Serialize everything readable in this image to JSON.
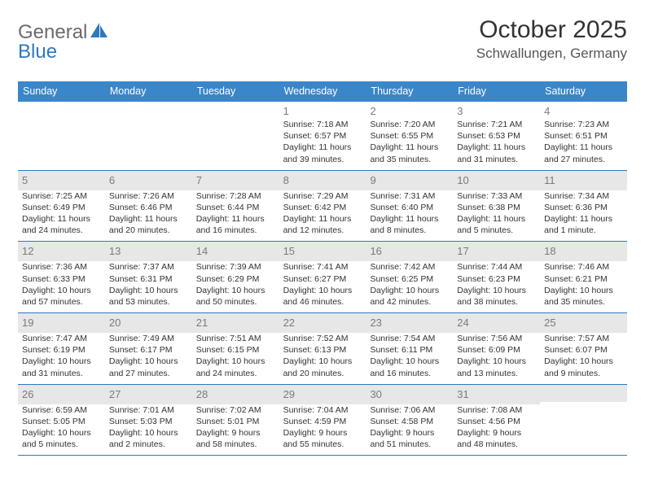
{
  "brand": {
    "word1": "General",
    "word2": "Blue",
    "word1_color": "#6b6b6b",
    "word2_color": "#2f78bf",
    "icon_color": "#2f78bf"
  },
  "title": "October 2025",
  "location": "Schwallungen, Germany",
  "colors": {
    "header_bg": "#3b86c8",
    "header_text": "#ffffff",
    "row_border": "#2f78bf",
    "daynum_color": "#7a7a7a",
    "daynum_bar_bg": "#e7e7e7",
    "text_color": "#333333",
    "page_bg": "#ffffff"
  },
  "fonts": {
    "title_size": 30,
    "location_size": 17,
    "day_header_size": 12.5,
    "daynum_size": 13,
    "info_size": 10.5
  },
  "day_names": [
    "Sunday",
    "Monday",
    "Tuesday",
    "Wednesday",
    "Thursday",
    "Friday",
    "Saturday"
  ],
  "weeks": [
    [
      {
        "blank": true
      },
      {
        "blank": true
      },
      {
        "blank": true
      },
      {
        "day": "1",
        "sunrise": "Sunrise: 7:18 AM",
        "sunset": "Sunset: 6:57 PM",
        "daylight": "Daylight: 11 hours and 39 minutes."
      },
      {
        "day": "2",
        "sunrise": "Sunrise: 7:20 AM",
        "sunset": "Sunset: 6:55 PM",
        "daylight": "Daylight: 11 hours and 35 minutes."
      },
      {
        "day": "3",
        "sunrise": "Sunrise: 7:21 AM",
        "sunset": "Sunset: 6:53 PM",
        "daylight": "Daylight: 11 hours and 31 minutes."
      },
      {
        "day": "4",
        "sunrise": "Sunrise: 7:23 AM",
        "sunset": "Sunset: 6:51 PM",
        "daylight": "Daylight: 11 hours and 27 minutes."
      }
    ],
    [
      {
        "day": "5",
        "sunrise": "Sunrise: 7:25 AM",
        "sunset": "Sunset: 6:49 PM",
        "daylight": "Daylight: 11 hours and 24 minutes."
      },
      {
        "day": "6",
        "sunrise": "Sunrise: 7:26 AM",
        "sunset": "Sunset: 6:46 PM",
        "daylight": "Daylight: 11 hours and 20 minutes."
      },
      {
        "day": "7",
        "sunrise": "Sunrise: 7:28 AM",
        "sunset": "Sunset: 6:44 PM",
        "daylight": "Daylight: 11 hours and 16 minutes."
      },
      {
        "day": "8",
        "sunrise": "Sunrise: 7:29 AM",
        "sunset": "Sunset: 6:42 PM",
        "daylight": "Daylight: 11 hours and 12 minutes."
      },
      {
        "day": "9",
        "sunrise": "Sunrise: 7:31 AM",
        "sunset": "Sunset: 6:40 PM",
        "daylight": "Daylight: 11 hours and 8 minutes."
      },
      {
        "day": "10",
        "sunrise": "Sunrise: 7:33 AM",
        "sunset": "Sunset: 6:38 PM",
        "daylight": "Daylight: 11 hours and 5 minutes."
      },
      {
        "day": "11",
        "sunrise": "Sunrise: 7:34 AM",
        "sunset": "Sunset: 6:36 PM",
        "daylight": "Daylight: 11 hours and 1 minute."
      }
    ],
    [
      {
        "day": "12",
        "sunrise": "Sunrise: 7:36 AM",
        "sunset": "Sunset: 6:33 PM",
        "daylight": "Daylight: 10 hours and 57 minutes."
      },
      {
        "day": "13",
        "sunrise": "Sunrise: 7:37 AM",
        "sunset": "Sunset: 6:31 PM",
        "daylight": "Daylight: 10 hours and 53 minutes."
      },
      {
        "day": "14",
        "sunrise": "Sunrise: 7:39 AM",
        "sunset": "Sunset: 6:29 PM",
        "daylight": "Daylight: 10 hours and 50 minutes."
      },
      {
        "day": "15",
        "sunrise": "Sunrise: 7:41 AM",
        "sunset": "Sunset: 6:27 PM",
        "daylight": "Daylight: 10 hours and 46 minutes."
      },
      {
        "day": "16",
        "sunrise": "Sunrise: 7:42 AM",
        "sunset": "Sunset: 6:25 PM",
        "daylight": "Daylight: 10 hours and 42 minutes."
      },
      {
        "day": "17",
        "sunrise": "Sunrise: 7:44 AM",
        "sunset": "Sunset: 6:23 PM",
        "daylight": "Daylight: 10 hours and 38 minutes."
      },
      {
        "day": "18",
        "sunrise": "Sunrise: 7:46 AM",
        "sunset": "Sunset: 6:21 PM",
        "daylight": "Daylight: 10 hours and 35 minutes."
      }
    ],
    [
      {
        "day": "19",
        "sunrise": "Sunrise: 7:47 AM",
        "sunset": "Sunset: 6:19 PM",
        "daylight": "Daylight: 10 hours and 31 minutes."
      },
      {
        "day": "20",
        "sunrise": "Sunrise: 7:49 AM",
        "sunset": "Sunset: 6:17 PM",
        "daylight": "Daylight: 10 hours and 27 minutes."
      },
      {
        "day": "21",
        "sunrise": "Sunrise: 7:51 AM",
        "sunset": "Sunset: 6:15 PM",
        "daylight": "Daylight: 10 hours and 24 minutes."
      },
      {
        "day": "22",
        "sunrise": "Sunrise: 7:52 AM",
        "sunset": "Sunset: 6:13 PM",
        "daylight": "Daylight: 10 hours and 20 minutes."
      },
      {
        "day": "23",
        "sunrise": "Sunrise: 7:54 AM",
        "sunset": "Sunset: 6:11 PM",
        "daylight": "Daylight: 10 hours and 16 minutes."
      },
      {
        "day": "24",
        "sunrise": "Sunrise: 7:56 AM",
        "sunset": "Sunset: 6:09 PM",
        "daylight": "Daylight: 10 hours and 13 minutes."
      },
      {
        "day": "25",
        "sunrise": "Sunrise: 7:57 AM",
        "sunset": "Sunset: 6:07 PM",
        "daylight": "Daylight: 10 hours and 9 minutes."
      }
    ],
    [
      {
        "day": "26",
        "sunrise": "Sunrise: 6:59 AM",
        "sunset": "Sunset: 5:05 PM",
        "daylight": "Daylight: 10 hours and 5 minutes."
      },
      {
        "day": "27",
        "sunrise": "Sunrise: 7:01 AM",
        "sunset": "Sunset: 5:03 PM",
        "daylight": "Daylight: 10 hours and 2 minutes."
      },
      {
        "day": "28",
        "sunrise": "Sunrise: 7:02 AM",
        "sunset": "Sunset: 5:01 PM",
        "daylight": "Daylight: 9 hours and 58 minutes."
      },
      {
        "day": "29",
        "sunrise": "Sunrise: 7:04 AM",
        "sunset": "Sunset: 4:59 PM",
        "daylight": "Daylight: 9 hours and 55 minutes."
      },
      {
        "day": "30",
        "sunrise": "Sunrise: 7:06 AM",
        "sunset": "Sunset: 4:58 PM",
        "daylight": "Daylight: 9 hours and 51 minutes."
      },
      {
        "day": "31",
        "sunrise": "Sunrise: 7:08 AM",
        "sunset": "Sunset: 4:56 PM",
        "daylight": "Daylight: 9 hours and 48 minutes."
      },
      {
        "blank": true
      }
    ]
  ]
}
